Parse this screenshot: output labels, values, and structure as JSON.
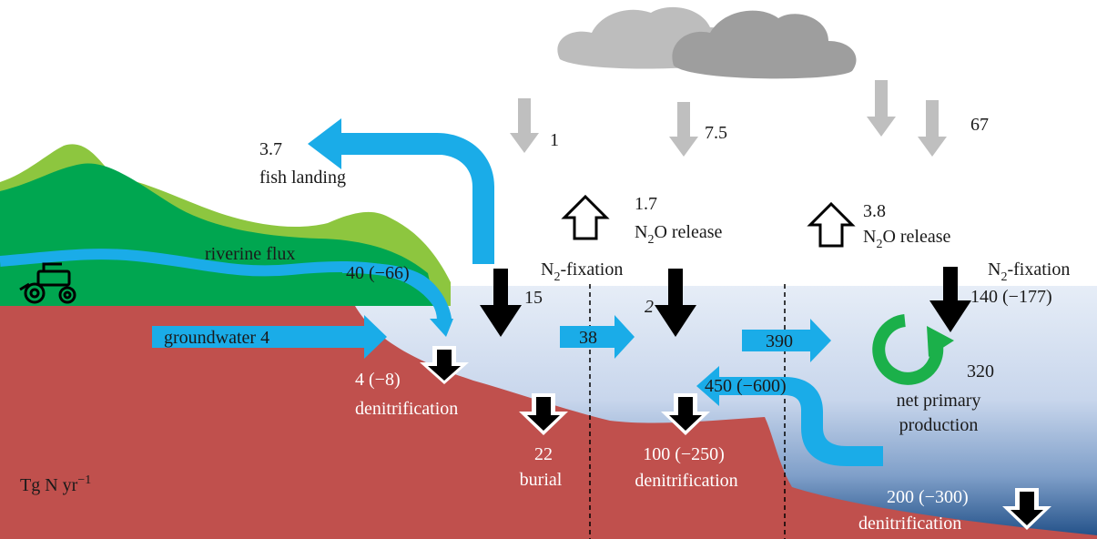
{
  "unit_label": {
    "base": "Tg N yr",
    "exp": "−1"
  },
  "land": {
    "riverine_flux_label": "riverine flux",
    "riverine_flux_value": "40 (−66)",
    "groundwater_label": "groundwater 4",
    "coastal_denitrification_value": "4 (−8)",
    "coastal_denitrification_label": "denitrification"
  },
  "fish": {
    "value": "3.7",
    "label": "fish landing"
  },
  "atmosphere": {
    "deposition_values": [
      "1",
      "7.5",
      "67"
    ],
    "n2o_release": [
      {
        "value": "1.7",
        "label_prefix": "N",
        "label_sub": "2",
        "label_suffix": "O release"
      },
      {
        "value": "3.8",
        "label_prefix": "N",
        "label_sub": "2",
        "label_suffix": "O release"
      }
    ]
  },
  "n2_fixation": [
    {
      "label_prefix": "N",
      "label_sub": "2",
      "label_suffix": "-fixation",
      "value": "15"
    },
    {
      "value": "2"
    },
    {
      "label_prefix": "N",
      "label_sub": "2",
      "label_suffix": "-fixation",
      "value": "140 (−177)"
    }
  ],
  "ocean_transport": {
    "shelf_to_slope": "38",
    "slope_to_open": "390",
    "open_to_shelf": "450 (−600)"
  },
  "net_primary_production": {
    "value": "320",
    "label_line1": "net primary",
    "label_line2": "production"
  },
  "sediment": {
    "burial_value": "22",
    "burial_label": "burial",
    "shelf_denitrification_value": "100 (−250)",
    "shelf_denitrification_label": "denitrification",
    "deep_denitrification_value": "200 (−300)",
    "deep_denitrification_label": "denitrification"
  },
  "colors": {
    "seafloor": "#c0504d",
    "hill_dark": "#00a650",
    "hill_light": "#8dc63f",
    "flux_blue": "#1aace8",
    "cloud_light": "#bdbdbd",
    "cloud_dark": "#9e9e9e",
    "deposition_arrow": "#bfbfbf",
    "fixation_arrow": "#000000",
    "npp_cycle": "#1bb04a"
  },
  "icons": [
    "tractor-icon",
    "cloud-icon",
    "npp-cycle-icon"
  ]
}
